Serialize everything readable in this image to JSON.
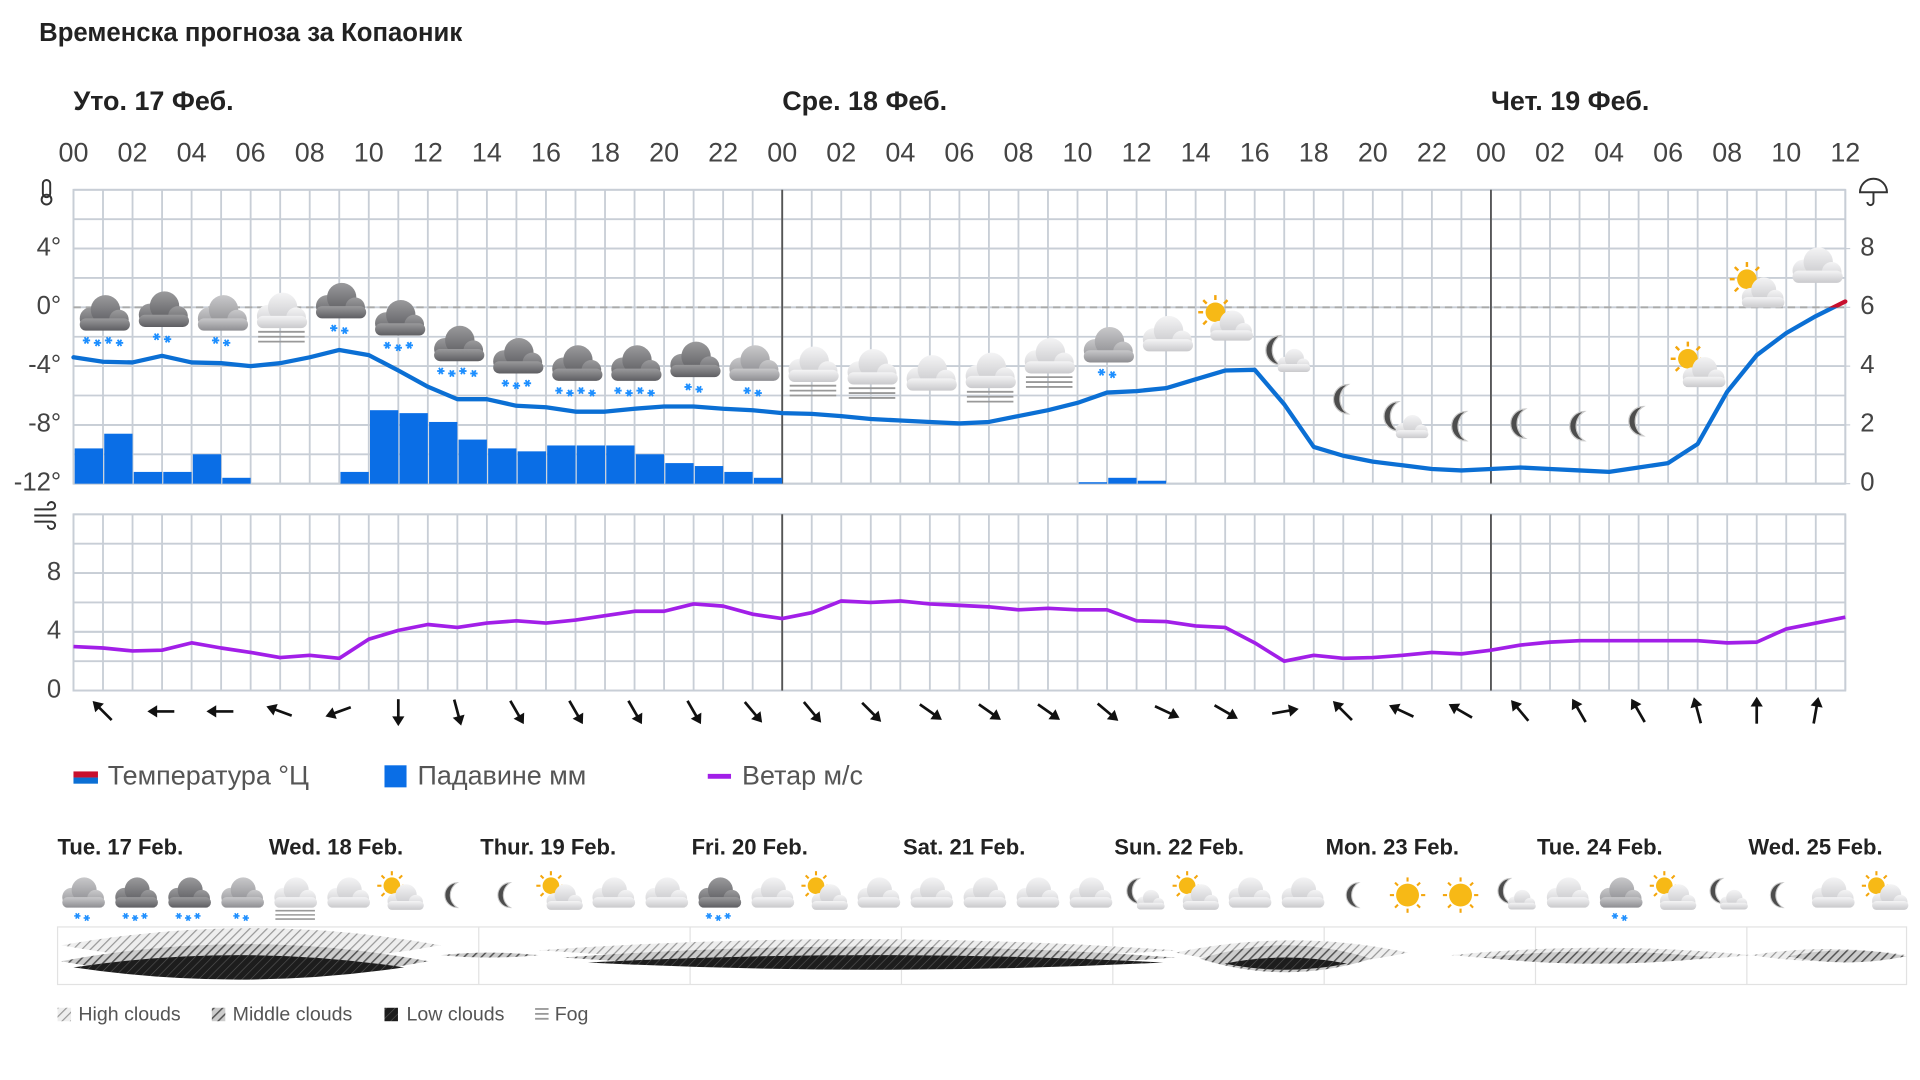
{
  "title": "Временска прогноза за Копаоник",
  "chart_data": [
    {
      "type": "combo",
      "days": [
        "Уто. 17 Феб.",
        "Сре. 18 Феб.",
        "Чет. 19 Феб."
      ],
      "categories": [
        "00",
        null,
        "02",
        null,
        "04",
        null,
        "06",
        null,
        "08",
        null,
        "10",
        null,
        "12",
        null,
        "14",
        null,
        "16",
        null,
        "18",
        null,
        "20",
        null,
        "22",
        null,
        "00",
        null,
        "02",
        null,
        "04",
        null,
        "06",
        null,
        "08",
        null,
        "10",
        null,
        "12",
        null,
        "14",
        null,
        "16",
        null,
        "18",
        null,
        "20",
        null,
        "22",
        null,
        "00",
        null,
        "02",
        null,
        "04",
        null,
        "06",
        null,
        "08",
        null,
        "10",
        null,
        "12"
      ],
      "ylim": [
        -12,
        8
      ],
      "yticks": [
        {
          "value": -12,
          "label": "-12°"
        },
        {
          "value": -8,
          "label": "-8°"
        },
        {
          "value": -4,
          "label": "-4°"
        },
        {
          "value": 0,
          "label": "0°"
        },
        {
          "value": 4,
          "label": "4°"
        }
      ],
      "y2lim": [
        0,
        10
      ],
      "y2ticks": [
        0,
        2,
        4,
        6,
        8
      ],
      "grid": true,
      "series": [
        {
          "name": "Температура °Ц",
          "type": "line",
          "color": "#0b6fd4",
          "color_above_zero": "#c8102e",
          "values": [
            -3.4,
            -3.7,
            -3.75,
            -3.3,
            -3.75,
            -3.8,
            -4.0,
            -3.8,
            -3.4,
            -2.9,
            -3.25,
            -4.3,
            -5.4,
            -6.25,
            -6.25,
            -6.7,
            -6.8,
            -7.1,
            -7.1,
            -6.9,
            -6.75,
            -6.75,
            -6.9,
            -7.0,
            -7.2,
            -7.25,
            -7.4,
            -7.6,
            -7.7,
            -7.8,
            -7.9,
            -7.8,
            -7.4,
            -7.0,
            -6.5,
            -5.8,
            -5.7,
            -5.5,
            -4.9,
            -4.3,
            -4.25,
            -6.6,
            -9.5,
            -10.1,
            -10.5,
            -10.75,
            -11.0,
            -11.1,
            -11.0,
            -10.9,
            -11.0,
            -11.1,
            -11.2,
            -10.9,
            -10.6,
            -9.3,
            -5.75,
            -3.25,
            -1.75,
            -0.6,
            0.4
          ]
        },
        {
          "name": "Падавине мм",
          "type": "bar",
          "axis": "y2",
          "color": "#0a6ee6",
          "values": [
            1.2,
            1.7,
            0.4,
            0.4,
            1.0,
            0.2,
            0,
            0,
            0,
            0.4,
            2.5,
            2.4,
            2.1,
            1.5,
            1.2,
            1.1,
            1.3,
            1.3,
            1.3,
            1.0,
            0.7,
            0.6,
            0.4,
            0.2,
            0,
            0,
            0,
            0,
            0,
            0,
            0,
            0,
            0,
            0,
            0.05,
            0.2,
            0.1,
            0,
            0,
            0,
            0,
            0,
            0,
            0,
            0,
            0,
            0,
            0,
            0,
            0,
            0,
            0,
            0,
            0,
            0,
            0,
            0,
            0,
            0,
            0,
            null
          ]
        }
      ]
    },
    {
      "type": "line",
      "ylim": [
        0,
        12
      ],
      "yticks": [
        0,
        4,
        8
      ],
      "grid": true,
      "series": [
        {
          "name": "Ветар м/с",
          "color": "#a21fe8",
          "values": [
            3.0,
            2.9,
            2.7,
            2.75,
            3.25,
            2.9,
            2.6,
            2.25,
            2.4,
            2.2,
            3.5,
            4.1,
            4.5,
            4.3,
            4.6,
            4.75,
            4.6,
            4.8,
            5.1,
            5.4,
            5.4,
            5.9,
            5.75,
            5.2,
            4.9,
            5.3,
            6.1,
            6.0,
            6.1,
            5.9,
            5.8,
            5.7,
            5.5,
            5.6,
            5.5,
            5.5,
            4.75,
            4.7,
            4.4,
            4.3,
            3.25,
            2.0,
            2.4,
            2.2,
            2.25,
            2.4,
            2.6,
            2.5,
            2.75,
            3.1,
            3.3,
            3.4,
            3.4,
            3.4,
            3.4,
            3.4,
            3.25,
            3.3,
            4.2,
            4.6,
            5.0
          ]
        }
      ],
      "wind_direction": [
        315,
        270,
        270,
        290,
        250,
        180,
        165,
        150,
        150,
        150,
        150,
        140,
        140,
        135,
        125,
        125,
        125,
        130,
        115,
        120,
        80,
        315,
        295,
        300,
        320,
        330,
        330,
        345,
        0,
        10
      ]
    }
  ],
  "daily": {
    "days": [
      "Tue. 17 Feb.",
      "Wed. 18 Feb.",
      "Thur. 19 Feb.",
      "Fri. 20 Feb.",
      "Sat. 21 Feb.",
      "Sun. 22 Feb.",
      "Mon. 23 Feb.",
      "Tue. 24 Feb.",
      "Wed. 25 Feb."
    ]
  },
  "cloud_legend": [
    "High clouds",
    "Middle clouds",
    "Low clouds",
    "Fog"
  ]
}
